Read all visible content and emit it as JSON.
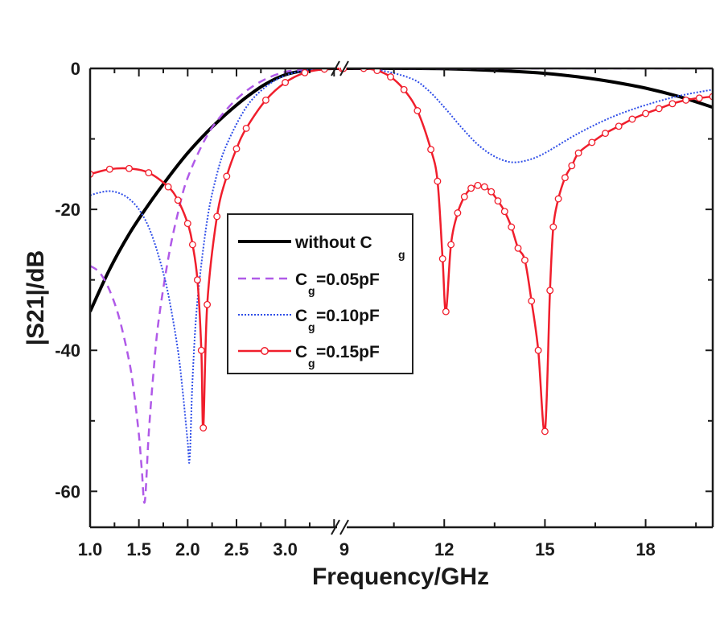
{
  "chart_data": {
    "type": "line",
    "title": "",
    "xlabel": "Frequency/GHz",
    "ylabel": "|S21|/dB",
    "ylim": [
      -65,
      0
    ],
    "x_segments": [
      {
        "range": [
          1.0,
          3.58
        ],
        "ticks": [
          "1.0",
          "1.5",
          "2.0",
          "2.5",
          "3.0"
        ],
        "tick_values": [
          1.0,
          1.5,
          2.0,
          2.5,
          3.0
        ]
      },
      {
        "range": [
          8.95,
          20.0
        ],
        "ticks": [
          "9",
          "12",
          "15",
          "18"
        ],
        "tick_values": [
          9,
          12,
          15,
          18
        ]
      }
    ],
    "axis_break": "//",
    "yticks": [
      "0",
      "-20",
      "-40",
      "-60"
    ],
    "ytick_values": [
      0,
      -20,
      -40,
      -60
    ],
    "grid": false,
    "legend": {
      "placement": "center-left",
      "entries": [
        {
          "text": "without C",
          "sub": "g",
          "suffix": ""
        },
        {
          "text": "C",
          "sub": "g",
          "suffix": "=0.05pF"
        },
        {
          "text": "C",
          "sub": "g",
          "suffix": "=0.10pF"
        },
        {
          "text": "C",
          "sub": "g",
          "suffix": "=0.15pF"
        }
      ]
    },
    "series": [
      {
        "name": "without Cg",
        "color": "#000000",
        "style": "solid",
        "x": [
          1.0,
          1.2,
          1.4,
          1.6,
          1.8,
          2.0,
          2.2,
          2.4,
          2.6,
          2.8,
          3.0,
          3.2,
          3.4,
          3.58,
          9,
          10,
          11,
          12,
          13,
          14,
          15,
          16,
          17,
          18,
          19,
          20
        ],
        "y": [
          -34.5,
          -28.5,
          -23.5,
          -19.3,
          -15.5,
          -12.0,
          -9.0,
          -6.4,
          -4.1,
          -2.2,
          -0.9,
          -0.3,
          -0.05,
          0,
          0,
          0,
          0,
          -0.05,
          -0.2,
          -0.4,
          -0.7,
          -1.2,
          -1.9,
          -2.8,
          -4.0,
          -5.5
        ]
      },
      {
        "name": "Cg=0.05pF",
        "color": "#b05ae8",
        "style": "dashed",
        "x": [
          1.0,
          1.1,
          1.2,
          1.3,
          1.4,
          1.45,
          1.5,
          1.53,
          1.56,
          1.6,
          1.65,
          1.7,
          1.8,
          1.9,
          2.0,
          2.2,
          2.4,
          2.6,
          2.8,
          3.0,
          3.2,
          3.4,
          3.58,
          9,
          12,
          15,
          18,
          20
        ],
        "y": [
          -28.0,
          -29.0,
          -31.5,
          -35.5,
          -41.5,
          -46.0,
          -52.0,
          -57.0,
          -61.5,
          -52.0,
          -43.0,
          -36.0,
          -27.0,
          -20.5,
          -15.5,
          -9.5,
          -5.8,
          -3.2,
          -1.5,
          -0.5,
          -0.15,
          -0.03,
          0,
          0,
          0,
          0,
          0,
          0
        ]
      },
      {
        "name": "Cg=0.10pF",
        "color": "#2f4ee8",
        "style": "dotted",
        "x": [
          1.0,
          1.1,
          1.2,
          1.3,
          1.4,
          1.5,
          1.6,
          1.7,
          1.8,
          1.9,
          1.95,
          2.0,
          2.02,
          2.05,
          2.1,
          2.2,
          2.3,
          2.4,
          2.6,
          2.8,
          3.0,
          3.2,
          3.4,
          3.58,
          9,
          10,
          11,
          11.5,
          12,
          12.5,
          13,
          13.5,
          14,
          14.5,
          15,
          16,
          17,
          18,
          19,
          20
        ],
        "y": [
          -18.0,
          -17.6,
          -17.4,
          -17.7,
          -18.5,
          -20.0,
          -22.5,
          -26.5,
          -32.0,
          -40.0,
          -46.0,
          -53.0,
          -55.5,
          -44.0,
          -33.0,
          -21.5,
          -15.0,
          -10.8,
          -5.5,
          -2.6,
          -1.0,
          -0.3,
          -0.05,
          0,
          0,
          -0.2,
          -1.4,
          -3.0,
          -5.5,
          -8.3,
          -10.8,
          -12.5,
          -13.3,
          -13.0,
          -12.0,
          -9.2,
          -6.9,
          -5.2,
          -3.9,
          -3.0
        ]
      },
      {
        "name": "Cg=0.15pF",
        "color": "#f01e2c",
        "style": "solid-marker",
        "x": [
          1.0,
          1.2,
          1.4,
          1.6,
          1.8,
          1.9,
          2.0,
          2.05,
          2.1,
          2.14,
          2.16,
          2.2,
          2.3,
          2.4,
          2.5,
          2.6,
          2.8,
          3.0,
          3.2,
          3.4,
          3.58,
          9,
          9.6,
          10,
          10.4,
          10.8,
          11.2,
          11.6,
          11.8,
          11.95,
          12.05,
          12.2,
          12.4,
          12.6,
          12.8,
          13.0,
          13.2,
          13.4,
          13.6,
          13.8,
          14.0,
          14.2,
          14.4,
          14.6,
          14.8,
          15.0,
          15.15,
          15.25,
          15.4,
          15.6,
          15.8,
          16.0,
          16.4,
          16.8,
          17.2,
          17.6,
          18.0,
          18.4,
          18.8,
          19.2,
          19.6,
          20.0
        ],
        "y": [
          -15.0,
          -14.3,
          -14.2,
          -14.8,
          -16.8,
          -18.7,
          -22.0,
          -25.0,
          -30.0,
          -40.0,
          -51.0,
          -33.5,
          -21.0,
          -15.3,
          -11.4,
          -8.5,
          -4.5,
          -2.0,
          -0.6,
          -0.1,
          0,
          0,
          0,
          -0.3,
          -1.2,
          -3.0,
          -6.0,
          -11.5,
          -16.0,
          -27.0,
          -34.5,
          -25.0,
          -20.5,
          -18.2,
          -17.0,
          -16.6,
          -16.8,
          -17.5,
          -18.8,
          -20.3,
          -22.5,
          -25.5,
          -27.2,
          -33.0,
          -40.0,
          -51.5,
          -31.5,
          -22.5,
          -18.5,
          -15.5,
          -13.8,
          -12.0,
          -10.5,
          -9.2,
          -8.2,
          -7.2,
          -6.4,
          -5.7,
          -5.0,
          -4.5,
          -4.2,
          -4.0
        ]
      }
    ]
  }
}
